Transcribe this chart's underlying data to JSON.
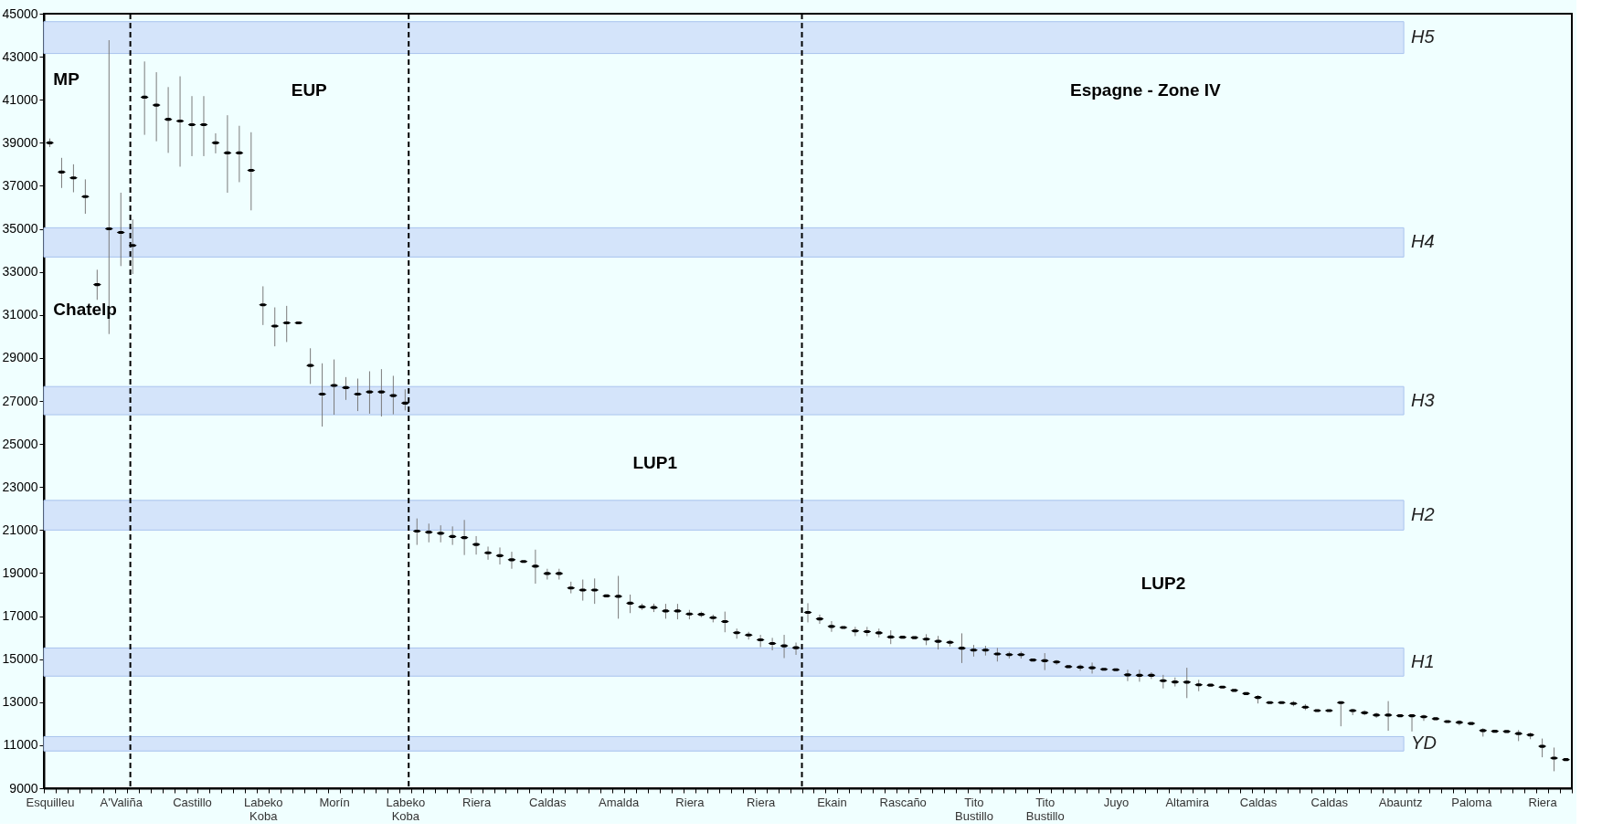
{
  "chart_data": {
    "type": "scatter",
    "categories": [
      "Esquilleu",
      null,
      null,
      null,
      null,
      null,
      "A'Valiña",
      null,
      null,
      null,
      null,
      null,
      "Castillo",
      null,
      null,
      null,
      null,
      null,
      "Labeko Koba",
      null,
      null,
      null,
      null,
      null,
      "Morín",
      null,
      null,
      null,
      null,
      null,
      "Labeko Koba",
      null,
      null,
      null,
      null,
      null,
      "Riera",
      null,
      null,
      null,
      null,
      null,
      "Caldas",
      null,
      null,
      null,
      null,
      null,
      "Amalda",
      null,
      null,
      null,
      null,
      null,
      "Riera",
      null,
      null,
      null,
      null,
      null,
      "Riera",
      null,
      null,
      null,
      null,
      null,
      "Ekain",
      null,
      null,
      null,
      null,
      null,
      "Rascaño",
      null,
      null,
      null,
      null,
      null,
      "Tito Bustillo",
      null,
      null,
      null,
      null,
      null,
      "Tito Bustillo",
      null,
      null,
      null,
      null,
      null,
      "Juyo",
      null,
      null,
      null,
      null,
      null,
      "Altamira",
      null,
      null,
      null,
      null,
      null,
      "Caldas",
      null,
      null,
      null,
      null,
      null,
      "Caldas",
      null,
      null,
      null,
      null,
      null,
      "Abauntz",
      null,
      null,
      null,
      null,
      null,
      "Paloma",
      null,
      null,
      null,
      null,
      null,
      "Riera",
      null,
      null
    ],
    "ylim": [
      9000,
      45000
    ],
    "yticks": [
      9000,
      11000,
      13000,
      15000,
      17000,
      19000,
      21000,
      23000,
      25000,
      27000,
      29000,
      31000,
      33000,
      35000,
      37000,
      39000,
      41000,
      43000,
      45000
    ],
    "series": [
      {
        "color": "#000000",
        "values": [
          39000,
          37640,
          37370,
          36500,
          32410,
          35000,
          34830,
          34230,
          41120,
          40750,
          40090,
          40010,
          39840,
          39840,
          39000,
          38530,
          38530,
          37720,
          31470,
          30480,
          30630,
          30630,
          28650,
          27320,
          27720,
          27620,
          27320,
          27420,
          27420,
          27250,
          26900,
          20950,
          20900,
          20850,
          20700,
          20650,
          20330,
          19940,
          19810,
          19620,
          19540,
          19320,
          18980,
          18980,
          18310,
          18210,
          18210,
          17940,
          17920,
          17600,
          17430,
          17400,
          17240,
          17240,
          17100,
          17080,
          16930,
          16750,
          16230,
          16120,
          15900,
          15730,
          15620,
          15530,
          17170,
          16870,
          16520,
          16470,
          16310,
          16280,
          16220,
          16030,
          16020,
          16000,
          15930,
          15830,
          15780,
          15510,
          15420,
          15420,
          15240,
          15210,
          15210,
          14960,
          14930,
          14870,
          14650,
          14630,
          14600,
          14530,
          14510,
          14270,
          14250,
          14250,
          14000,
          13940,
          13930,
          13810,
          13790,
          13700,
          13550,
          13400,
          13220,
          12980,
          12980,
          12940,
          12770,
          12610,
          12610,
          12980,
          12610,
          12510,
          12400,
          12400,
          12370,
          12370,
          12320,
          12230,
          12100,
          12060,
          12010,
          11680,
          11650,
          11640,
          11540,
          11480,
          10950,
          10400,
          10330
        ],
        "errors": [
          [
            38800,
            39200
          ],
          [
            36900,
            38300
          ],
          [
            36700,
            38000
          ],
          [
            35700,
            37300
          ],
          [
            31700,
            33100
          ],
          [
            30110,
            43770
          ],
          [
            33270,
            36680
          ],
          [
            32900,
            35440
          ],
          [
            39370,
            42780
          ],
          [
            39070,
            42280
          ],
          [
            38530,
            41590
          ],
          [
            37890,
            42090
          ],
          [
            38380,
            41170
          ],
          [
            38380,
            41170
          ],
          [
            38510,
            39440
          ],
          [
            36680,
            40280
          ],
          [
            37170,
            39790
          ],
          [
            35860,
            39490
          ],
          [
            30530,
            32330
          ],
          [
            29540,
            31350
          ],
          [
            29740,
            31420
          ],
          null,
          [
            27790,
            29450
          ],
          [
            25810,
            28750
          ],
          [
            26360,
            28930
          ],
          [
            27050,
            28110
          ],
          [
            26530,
            28040
          ],
          [
            26410,
            28380
          ],
          [
            26280,
            28480
          ],
          [
            26380,
            28170
          ],
          [
            26560,
            27540
          ],
          [
            20310,
            21540
          ],
          [
            20430,
            21300
          ],
          [
            20430,
            21220
          ],
          [
            20310,
            21170
          ],
          [
            19840,
            21470
          ],
          [
            19860,
            20720
          ],
          [
            19620,
            20230
          ],
          [
            19400,
            20190
          ],
          [
            19200,
            19990
          ],
          null,
          [
            18510,
            20090
          ],
          [
            18700,
            19200
          ],
          [
            18700,
            19200
          ],
          [
            18060,
            18600
          ],
          [
            17720,
            18700
          ],
          [
            17570,
            18750
          ],
          null,
          [
            16880,
            18870
          ],
          [
            17140,
            18000
          ],
          [
            17290,
            17580
          ],
          [
            17190,
            17580
          ],
          [
            16880,
            17570
          ],
          [
            16850,
            17570
          ],
          [
            16850,
            17290
          ],
          [
            16950,
            17210
          ],
          [
            16710,
            17070
          ],
          [
            16250,
            17210
          ],
          [
            15950,
            16420
          ],
          [
            15910,
            16270
          ],
          [
            15560,
            16130
          ],
          [
            15410,
            15990
          ],
          [
            15050,
            16130
          ],
          [
            15200,
            15770
          ],
          [
            16710,
            17600
          ],
          [
            16640,
            17070
          ],
          [
            16270,
            16770
          ],
          null,
          [
            16070,
            16500
          ],
          [
            16070,
            16500
          ],
          [
            16010,
            16420
          ],
          [
            15700,
            16340
          ],
          null,
          null,
          [
            15650,
            16160
          ],
          [
            15450,
            16080
          ],
          [
            15590,
            15890
          ],
          [
            14820,
            16200
          ],
          [
            15120,
            15660
          ],
          [
            15170,
            15620
          ],
          [
            14890,
            15520
          ],
          [
            15030,
            15350
          ],
          [
            15030,
            15350
          ],
          null,
          [
            14490,
            15280
          ],
          [
            14740,
            14960
          ],
          null,
          [
            14460,
            14750
          ],
          [
            14330,
            14840
          ],
          null,
          null,
          [
            13980,
            14510
          ],
          [
            13950,
            14510
          ],
          [
            14080,
            14390
          ],
          [
            13640,
            14270
          ],
          [
            13730,
            14150
          ],
          [
            13190,
            14600
          ],
          [
            13510,
            14040
          ],
          null,
          null,
          null,
          null,
          [
            12940,
            13330
          ],
          null,
          null,
          [
            12810,
            13050
          ],
          [
            12630,
            12910
          ],
          null,
          null,
          [
            11880,
            12980
          ],
          [
            12400,
            12690
          ],
          [
            12390,
            12620
          ],
          [
            12270,
            12510
          ],
          [
            11670,
            13050
          ],
          null,
          [
            11640,
            12370
          ],
          [
            12130,
            12420
          ],
          null,
          null,
          [
            11920,
            12160
          ],
          null,
          [
            11400,
            11790
          ],
          null,
          null,
          [
            11190,
            11710
          ],
          [
            11280,
            11590
          ],
          [
            10440,
            11310
          ],
          [
            9790,
            10890
          ],
          null
        ]
      }
    ],
    "bands": [
      {
        "axis": "y",
        "from": 43150,
        "to": 44630,
        "label": "H5",
        "color": "#d4e4fa"
      },
      {
        "axis": "y",
        "from": 33690,
        "to": 35050,
        "label": "H4",
        "color": "#d4e4fa"
      },
      {
        "axis": "y",
        "from": 26360,
        "to": 27670,
        "label": "H3",
        "color": "#d4e4fa"
      },
      {
        "axis": "y",
        "from": 21000,
        "to": 22380,
        "label": "H2",
        "color": "#d4e4fa"
      },
      {
        "axis": "y",
        "from": 14210,
        "to": 15520,
        "label": "H1",
        "color": "#d4e4fa"
      },
      {
        "axis": "y",
        "from": 10730,
        "to": 11400,
        "label": "YD",
        "color": "#d4e4fa"
      }
    ],
    "annotations": [
      "MP",
      "Chatelp",
      "EUP",
      "Espagne - Zone IV",
      "LUP1",
      "LUP2"
    ]
  }
}
